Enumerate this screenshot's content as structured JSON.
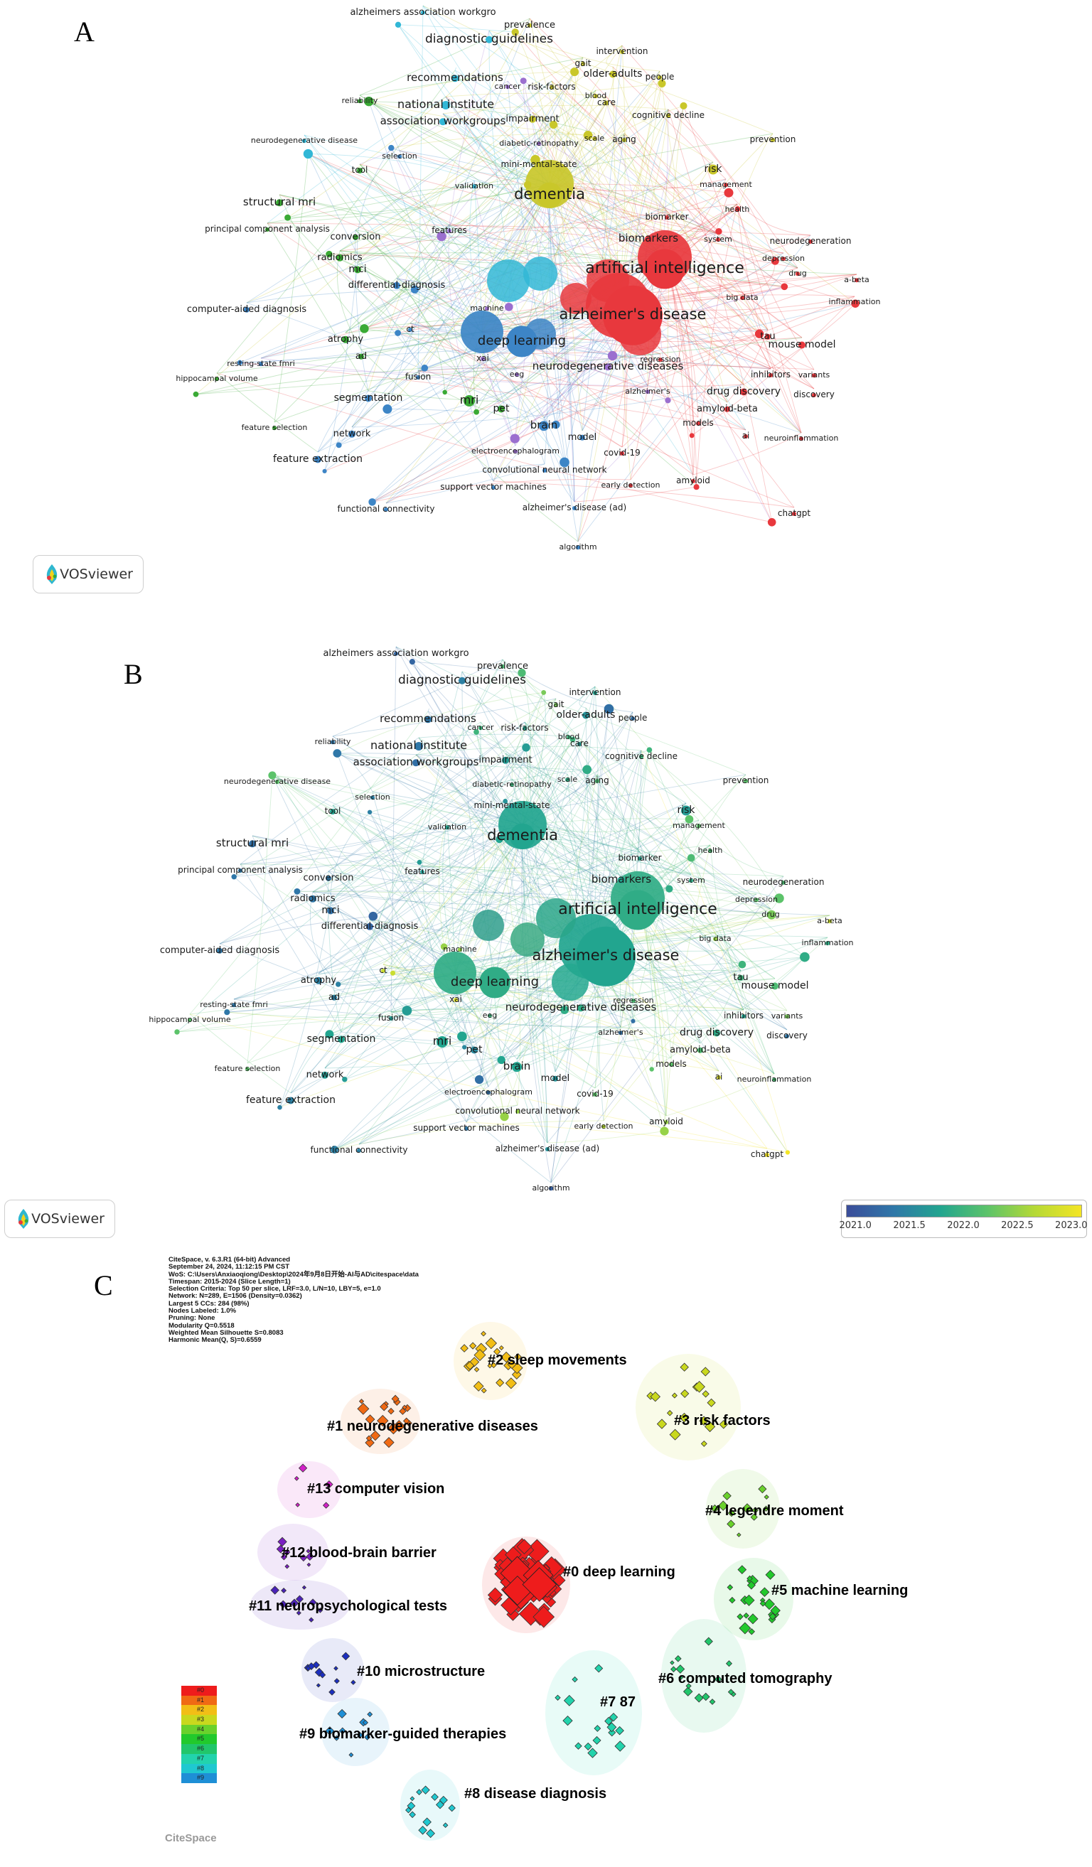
{
  "panels": {
    "a": {
      "letter": "A"
    },
    "b": {
      "letter": "B"
    },
    "c": {
      "letter": "C"
    }
  },
  "vosviewer_label": "VOSviewer",
  "overlay_colorbar": {
    "ticks": [
      "2021.0",
      "2021.5",
      "2022.0",
      "2022.5",
      "2023.0"
    ],
    "colors": [
      "#3b4d9a",
      "#22a58f",
      "#f4e525"
    ]
  },
  "cluster_colors": {
    "red": "#e8383d",
    "green": "#3aaa35",
    "blue": "#3d85c6",
    "yellow": "#c9c72a",
    "purple": "#9b6fcf",
    "cyan": "#31b7d6"
  },
  "network_keywords": [
    {
      "label": "alzheimers association workgro",
      "c": "cyan",
      "yr": 2021.3
    },
    {
      "label": "diagnostic guidelines",
      "c": "cyan",
      "yr": 2021.6
    },
    {
      "label": "prevalence",
      "c": "yellow",
      "yr": 2022.3
    },
    {
      "label": "intervention",
      "c": "yellow",
      "yr": 2022.0
    },
    {
      "label": "gait",
      "c": "yellow",
      "yr": 2022.5
    },
    {
      "label": "older-adults",
      "c": "yellow",
      "yr": 2021.8
    },
    {
      "label": "people",
      "c": "yellow",
      "yr": 2021.4
    },
    {
      "label": "recommendations",
      "c": "cyan",
      "yr": 2021.5
    },
    {
      "label": "cancer",
      "c": "purple",
      "yr": 2022.2
    },
    {
      "label": "risk-factors",
      "c": "yellow",
      "yr": 2022.0
    },
    {
      "label": "blood",
      "c": "yellow",
      "yr": 2022.2
    },
    {
      "label": "care",
      "c": "yellow",
      "yr": 2021.9
    },
    {
      "label": "reliability",
      "c": "green",
      "yr": 2021.5
    },
    {
      "label": "national institute",
      "c": "cyan",
      "yr": 2021.5
    },
    {
      "label": "cognitive decline",
      "c": "yellow",
      "yr": 2022.2
    },
    {
      "label": "association workgroups",
      "c": "cyan",
      "yr": 2021.4
    },
    {
      "label": "impairment",
      "c": "yellow",
      "yr": 2021.9
    },
    {
      "label": "prevention",
      "c": "yellow",
      "yr": 2022.4
    },
    {
      "label": "neurodegenerative disease",
      "c": "cyan",
      "yr": 2022.4
    },
    {
      "label": "diabetic-retinopathy",
      "c": "purple",
      "yr": 2022.2
    },
    {
      "label": "scale",
      "c": "yellow",
      "yr": 2022.1
    },
    {
      "label": "aging",
      "c": "yellow",
      "yr": 2022.3
    },
    {
      "label": "selection",
      "c": "blue",
      "yr": 2021.6
    },
    {
      "label": "tool",
      "c": "green",
      "yr": 2022.0
    },
    {
      "label": "mini-mental-state",
      "c": "yellow",
      "yr": 2021.8
    },
    {
      "label": "risk",
      "c": "yellow",
      "yr": 2021.9
    },
    {
      "label": "management",
      "c": "red",
      "yr": 2022.4
    },
    {
      "label": "validation",
      "c": "cyan",
      "yr": 2022.0
    },
    {
      "label": "dementia",
      "c": "yellow",
      "yr": 2022.0
    },
    {
      "label": "structural mri",
      "c": "green",
      "yr": 2021.4
    },
    {
      "label": "health",
      "c": "red",
      "yr": 2022.3
    },
    {
      "label": "biomarker",
      "c": "red",
      "yr": 2022.0
    },
    {
      "label": "principal component analysis",
      "c": "green",
      "yr": 2021.5
    },
    {
      "label": "conversion",
      "c": "green",
      "yr": 2021.5
    },
    {
      "label": "features",
      "c": "purple",
      "yr": 2021.9
    },
    {
      "label": "biomarkers",
      "c": "red",
      "yr": 2022.0
    },
    {
      "label": "system",
      "c": "red",
      "yr": 2022.1
    },
    {
      "label": "neurodegeneration",
      "c": "red",
      "yr": 2022.3
    },
    {
      "label": "radiomics",
      "c": "green",
      "yr": 2021.5
    },
    {
      "label": "artificial intelligence",
      "c": "red",
      "yr": 2022.1
    },
    {
      "label": "depression",
      "c": "red",
      "yr": 2022.4
    },
    {
      "label": "mci",
      "c": "green",
      "yr": 2021.4
    },
    {
      "label": "drug",
      "c": "red",
      "yr": 2022.5
    },
    {
      "label": "a-beta",
      "c": "red",
      "yr": 2022.8
    },
    {
      "label": "differential-diagnosis",
      "c": "blue",
      "yr": 2021.3
    },
    {
      "label": "big data",
      "c": "red",
      "yr": 2022.6
    },
    {
      "label": "inflammation",
      "c": "red",
      "yr": 2022.1
    },
    {
      "label": "computer-aided diagnosis",
      "c": "blue",
      "yr": 2021.5
    },
    {
      "label": "machine",
      "c": "purple",
      "yr": 2022.6
    },
    {
      "label": "alzheimer's disease",
      "c": "red",
      "yr": 2022.0
    },
    {
      "label": "ct",
      "c": "blue",
      "yr": 2022.8
    },
    {
      "label": "deep learning",
      "c": "blue",
      "yr": 2022.1
    },
    {
      "label": "tau",
      "c": "red",
      "yr": 2022.2
    },
    {
      "label": "mouse model",
      "c": "red",
      "yr": 2022.3
    },
    {
      "label": "atrophy",
      "c": "green",
      "yr": 2021.6
    },
    {
      "label": "ad",
      "c": "green",
      "yr": 2021.6
    },
    {
      "label": "resting-state fmri",
      "c": "blue",
      "yr": 2021.5
    },
    {
      "label": "xai",
      "c": "purple",
      "yr": 2022.9
    },
    {
      "label": "hippocampal volume",
      "c": "green",
      "yr": 2022.4
    },
    {
      "label": "regression",
      "c": "red",
      "yr": 2022.3
    },
    {
      "label": "fusion",
      "c": "blue",
      "yr": 2021.9
    },
    {
      "label": "eeg",
      "c": "purple",
      "yr": 2022.2
    },
    {
      "label": "neurodegenerative diseases",
      "c": "purple",
      "yr": 2022.1
    },
    {
      "label": "inhibitors",
      "c": "red",
      "yr": 2022.0
    },
    {
      "label": "segmentation",
      "c": "blue",
      "yr": 2022.0
    },
    {
      "label": "variants",
      "c": "red",
      "yr": 2022.5
    },
    {
      "label": "alzheimer's",
      "c": "purple",
      "yr": 2021.4
    },
    {
      "label": "drug discovery",
      "c": "red",
      "yr": 2022.1
    },
    {
      "label": "mri",
      "c": "green",
      "yr": 2022.0
    },
    {
      "label": "discovery",
      "c": "red",
      "yr": 2021.5
    },
    {
      "label": "pet",
      "c": "green",
      "yr": 2021.7
    },
    {
      "label": "amyloid-beta",
      "c": "red",
      "yr": 2022.3
    },
    {
      "label": "brain",
      "c": "blue",
      "yr": 2022.0
    },
    {
      "label": "feature selection",
      "c": "green",
      "yr": 2022.4
    },
    {
      "label": "network",
      "c": "blue",
      "yr": 2021.9
    },
    {
      "label": "model",
      "c": "blue",
      "yr": 2021.8
    },
    {
      "label": "models",
      "c": "red",
      "yr": 2022.4
    },
    {
      "label": "neuroinflammation",
      "c": "red",
      "yr": 2022.3
    },
    {
      "label": "electroencephalogram",
      "c": "purple",
      "yr": 2021.4
    },
    {
      "label": "ai",
      "c": "red",
      "yr": 2022.9
    },
    {
      "label": "feature extraction",
      "c": "blue",
      "yr": 2021.6
    },
    {
      "label": "covid-19",
      "c": "red",
      "yr": 2022.4
    },
    {
      "label": "convolutional neural network",
      "c": "blue",
      "yr": 2022.6
    },
    {
      "label": "early detection",
      "c": "red",
      "yr": 2022.7
    },
    {
      "label": "amyloid",
      "c": "red",
      "yr": 2022.6
    },
    {
      "label": "support vector machines",
      "c": "blue",
      "yr": 2021.5
    },
    {
      "label": "functional connectivity",
      "c": "blue",
      "yr": 2021.6
    },
    {
      "label": "alzheimer's disease (ad)",
      "c": "blue",
      "yr": 2021.8
    },
    {
      "label": "chatgpt",
      "c": "red",
      "yr": 2023.0
    },
    {
      "label": "algorithm",
      "c": "blue",
      "yr": 2021.2
    }
  ],
  "citespace_meta": [
    "CiteSpace, v. 6.3.R1 (64-bit) Advanced",
    "September 24, 2024, 11:12:15 PM CST",
    "WoS: C:\\Users\\Anxiaoqiong\\Desktop\\2024年9月8日开始-AI与AD\\citespace\\data",
    "Timespan: 2015-2024 (Slice Length=1)",
    "Selection Criteria: Top 50 per slice, LRF=3.0, L/N=10, LBY=5, e=1.0",
    "Network: N=289, E=1506 (Density=0.0362)",
    "Largest 5 CCs: 284 (98%)",
    "Nodes Labeled: 1.0%",
    "Pruning: None",
    "Modularity Q=0.5518",
    "Weighted Mean Silhouette S=0.8083",
    "Harmonic Mean(Q, S)=0.6559"
  ],
  "clusters": [
    {
      "label": "#0 deep learning",
      "color": "#ee1c1c",
      "count": 46
    },
    {
      "label": "#1 neurodegenerative diseases",
      "color": "#f06a14",
      "count": 20
    },
    {
      "label": "#2 sleep movements",
      "color": "#f2be16",
      "count": 24
    },
    {
      "label": "#3 risk factors",
      "color": "#c9d81e",
      "count": 18
    },
    {
      "label": "#4 legendre moment",
      "color": "#6ad12c",
      "count": 12
    },
    {
      "label": "#5 machine learning",
      "color": "#22c92c",
      "count": 22
    },
    {
      "label": "#6 computed tomography",
      "color": "#21c66b",
      "count": 16
    },
    {
      "label": "#7 87",
      "color": "#22d3ac",
      "count": 16
    },
    {
      "label": "#8 disease diagnosis",
      "color": "#1fc8d0",
      "count": 14
    },
    {
      "label": "#9 biomarker-guided therapies",
      "color": "#1e8fd6",
      "count": 10
    },
    {
      "label": "#10 microstructure",
      "color": "#1c2fbf",
      "count": 12
    },
    {
      "label": "#11 neuropsychological tests",
      "color": "#4a22b8",
      "count": 10
    },
    {
      "label": "#12 blood-brain barrier",
      "color": "#7b1fc2",
      "count": 9
    },
    {
      "label": "#13 computer vision",
      "color": "#d21fc8",
      "count": 5
    }
  ],
  "cluster_legend": [
    "#0",
    "#1",
    "#2",
    "#3",
    "#4",
    "#5",
    "#6",
    "#7",
    "#8",
    "#9"
  ],
  "citespace_logo": "CiteSpace"
}
